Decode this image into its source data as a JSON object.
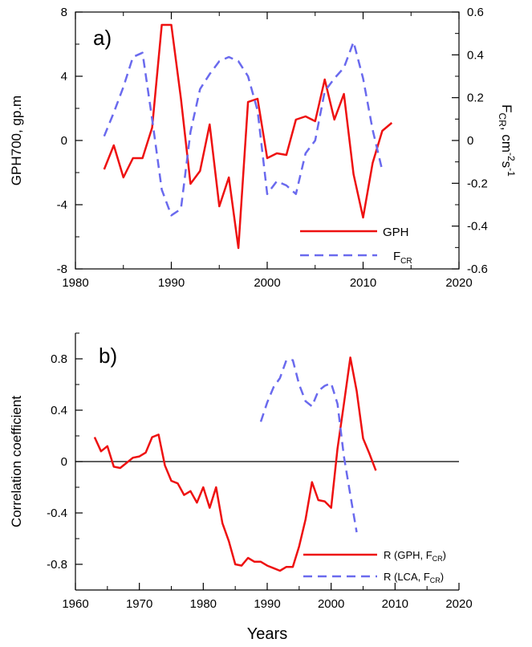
{
  "colors": {
    "red": "#ee1111",
    "blue": "#6a6aee",
    "axis": "#000000"
  },
  "chart_data": [
    {
      "type": "line",
      "panel_label": "a)",
      "xlabel": "",
      "ylabel": "GPH700, gp.m",
      "y2label_main": "F",
      "y2label_sub": "CR",
      "y2label_tail": ", cm",
      "y2label_sup1": "-2",
      "y2label_mid": "s",
      "y2label_sup2": "-1",
      "xlim": [
        1980,
        2020
      ],
      "ylim": [
        -8,
        8
      ],
      "y2lim": [
        -0.6,
        0.6
      ],
      "x_ticks": [
        "1980",
        "1990",
        "2000",
        "2010",
        "2020"
      ],
      "y_ticks": [
        "-8",
        "-4",
        "0",
        "4",
        "8"
      ],
      "y2_ticks": [
        "-0.6",
        "-0.4",
        "-0.2",
        "0",
        "0.2",
        "0.4",
        "0.6"
      ],
      "legend": [
        {
          "label": "GPH",
          "sub": ""
        },
        {
          "label": "F",
          "sub": "CR"
        }
      ],
      "series": [
        {
          "name": "GPH",
          "axis": "left",
          "x": [
            1983,
            1984,
            1985,
            1986,
            1987,
            1988,
            1989,
            1990,
            1991,
            1992,
            1993,
            1994,
            1995,
            1996,
            1997,
            1998,
            1999,
            2000,
            2001,
            2002,
            2003,
            2004,
            2005,
            2006,
            2007,
            2008,
            2009,
            2010,
            2011,
            2012,
            2013
          ],
          "y": [
            -1.8,
            -0.3,
            -2.3,
            -1.1,
            -1.1,
            0.8,
            7.2,
            7.2,
            2.6,
            -2.7,
            -1.9,
            1.0,
            -4.1,
            -2.3,
            -6.7,
            2.4,
            2.6,
            -1.1,
            -0.8,
            -0.9,
            1.3,
            1.5,
            1.2,
            3.8,
            1.3,
            2.9,
            -2.1,
            -4.8,
            -1.4,
            0.6,
            1.1
          ]
        },
        {
          "name": "FCR",
          "axis": "right",
          "x": [
            1983,
            1984,
            1985,
            1986,
            1987,
            1988,
            1989,
            1990,
            1991,
            1992,
            1993,
            1994,
            1995,
            1996,
            1997,
            1998,
            1999,
            2000,
            2001,
            2002,
            2003,
            2004,
            2005,
            2006,
            2007,
            2008,
            2009,
            2010,
            2011,
            2012
          ],
          "y": [
            0.02,
            0.13,
            0.25,
            0.39,
            0.41,
            0.1,
            -0.23,
            -0.35,
            -0.32,
            0.04,
            0.24,
            0.31,
            0.37,
            0.39,
            0.37,
            0.3,
            0.14,
            -0.25,
            -0.19,
            -0.21,
            -0.25,
            -0.06,
            0,
            0.23,
            0.29,
            0.34,
            0.46,
            0.29,
            0.05,
            -0.14
          ]
        }
      ]
    },
    {
      "type": "line",
      "panel_label": "b)",
      "xlabel": "Years",
      "ylabel": "Correlation coefficient",
      "xlim": [
        1960,
        2020
      ],
      "ylim": [
        -1.0,
        1.0
      ],
      "x_ticks": [
        "1960",
        "1970",
        "1980",
        "1990",
        "2000",
        "2010",
        "2020"
      ],
      "y_ticks": [
        "-0.8",
        "-0.4",
        "0",
        "0.4",
        "0.8"
      ],
      "y_tick_values": [
        -0.8,
        -0.4,
        0,
        0.4,
        0.8
      ],
      "legend": [
        {
          "label": "R (GPH, F",
          "sub": "CR",
          "tail": ")"
        },
        {
          "label": "R (LCA, F",
          "sub": "CR",
          "tail": ")"
        }
      ],
      "series": [
        {
          "name": "R (GPH, FCR)",
          "x": [
            1963,
            1964,
            1965,
            1966,
            1967,
            1968,
            1969,
            1970,
            1971,
            1972,
            1973,
            1974,
            1975,
            1976,
            1977,
            1978,
            1979,
            1980,
            1981,
            1982,
            1983,
            1984,
            1985,
            1986,
            1987,
            1988,
            1989,
            1990,
            1991,
            1992,
            1993,
            1994,
            1995,
            1996,
            1997,
            1998,
            1999,
            2000,
            2001,
            2002,
            2003,
            2004,
            2005,
            2006,
            2007
          ],
          "y": [
            0.19,
            0.08,
            0.12,
            -0.04,
            -0.05,
            -0.01,
            0.03,
            0.04,
            0.07,
            0.19,
            0.21,
            -0.03,
            -0.15,
            -0.17,
            -0.26,
            -0.23,
            -0.32,
            -0.2,
            -0.36,
            -0.2,
            -0.48,
            -0.62,
            -0.8,
            -0.81,
            -0.75,
            -0.78,
            -0.78,
            -0.81,
            -0.83,
            -0.85,
            -0.82,
            -0.82,
            -0.66,
            -0.45,
            -0.16,
            -0.3,
            -0.31,
            -0.36,
            0.1,
            0.45,
            0.81,
            0.55,
            0.18,
            0.06,
            -0.07
          ]
        },
        {
          "name": "R (LCA, FCR)",
          "x": [
            1989,
            1990,
            1991,
            1992,
            1993,
            1994,
            1995,
            1996,
            1997,
            1998,
            1999,
            2000,
            2001,
            2002,
            2003,
            2004
          ],
          "y": [
            0.31,
            0.46,
            0.58,
            0.65,
            0.79,
            0.79,
            0.6,
            0.47,
            0.43,
            0.55,
            0.59,
            0.61,
            0.45,
            0.04,
            -0.26,
            -0.55
          ]
        }
      ]
    }
  ]
}
